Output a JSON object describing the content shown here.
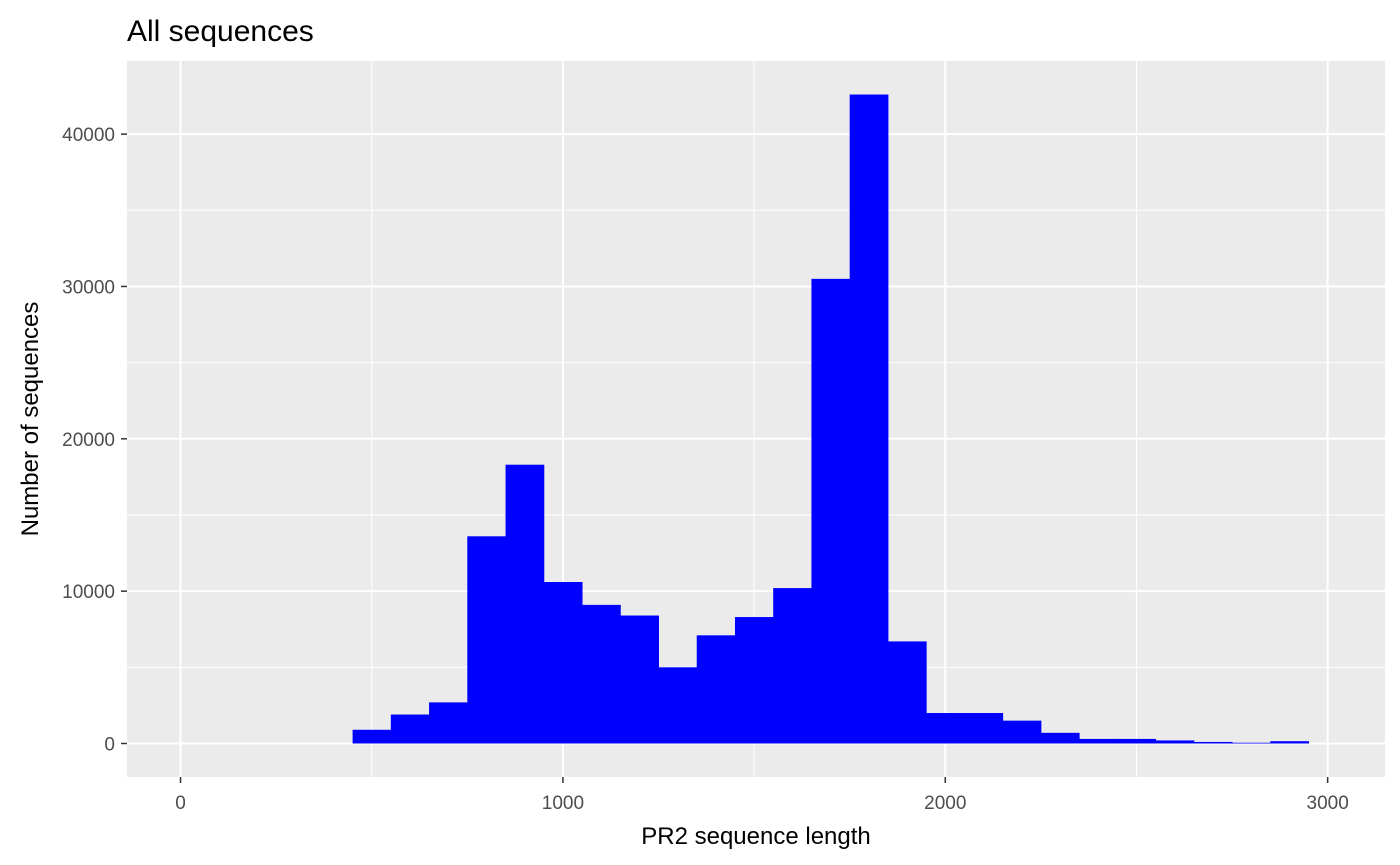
{
  "chart_data": {
    "type": "bar",
    "title": "All sequences",
    "xlabel": "PR2 sequence length",
    "ylabel": "Number of sequences",
    "xlim": [
      -140,
      3150
    ],
    "ylim": [
      -2200,
      44800
    ],
    "x_ticks": [
      0,
      1000,
      2000,
      3000
    ],
    "x_tick_labels": [
      "0",
      "1000",
      "2000",
      "3000"
    ],
    "y_ticks": [
      0,
      10000,
      20000,
      30000,
      40000
    ],
    "y_tick_labels": [
      "0",
      "10000",
      "20000",
      "30000",
      "40000"
    ],
    "bin_width": 100,
    "bin_edges_start": 450,
    "values": [
      900,
      1900,
      2700,
      13600,
      18300,
      10600,
      9100,
      8400,
      5000,
      7100,
      8300,
      10200,
      30500,
      42600,
      6700,
      2000,
      2000,
      1500,
      700,
      300,
      300,
      200,
      100,
      50,
      150
    ],
    "grid": true,
    "legend": "none",
    "colors": {
      "bar": "#0000ff",
      "panel_background": "#ebebeb",
      "grid": "#ffffff",
      "tick_label": "#4d4d4d"
    }
  }
}
